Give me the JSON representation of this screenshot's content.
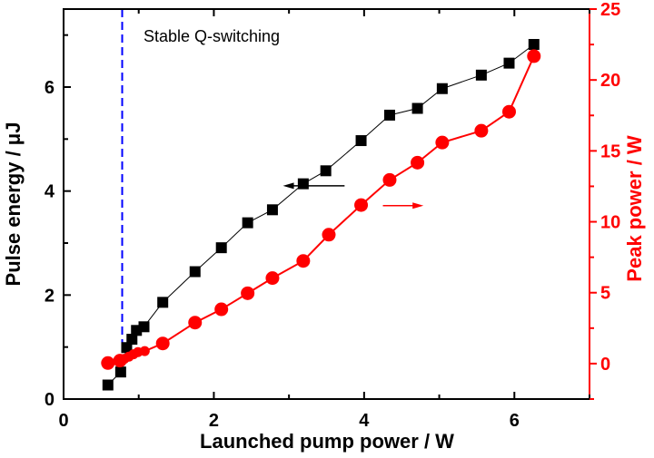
{
  "chart_data": {
    "type": "line",
    "xlabel": "Launched pump power / W",
    "ylabel_left": "Pulse energy / μJ",
    "ylabel_right": "Peak power / W",
    "xlim": [
      0,
      7
    ],
    "ylim_left": [
      0,
      7.5
    ],
    "ylim_right": [
      -2.5,
      25
    ],
    "xticks": [
      "0",
      "2",
      "4",
      "6"
    ],
    "yticks_left": [
      "0",
      "2",
      "4",
      "6"
    ],
    "yticks_right": [
      "0",
      "5",
      "10",
      "15",
      "20",
      "25"
    ],
    "grid": false,
    "colors": {
      "left_axis": "#000000",
      "right_axis": "#ff0000",
      "threshold_line": "#0000ff"
    },
    "annotation": "Stable Q-switching",
    "threshold_x": 0.78,
    "series": [
      {
        "axis": "left",
        "marker": "square",
        "color": "#000000",
        "x": [
          0.59,
          0.76,
          0.84,
          0.91,
          0.97,
          1.07,
          1.32,
          1.75,
          2.1,
          2.45,
          2.78,
          3.19,
          3.49,
          3.96,
          4.34,
          4.71,
          5.04,
          5.56,
          5.93,
          6.26
        ],
        "y": [
          0.27,
          0.52,
          0.99,
          1.15,
          1.32,
          1.39,
          1.86,
          2.45,
          2.91,
          3.39,
          3.64,
          4.14,
          4.39,
          4.97,
          5.46,
          5.59,
          5.97,
          6.23,
          6.46,
          6.82
        ]
      },
      {
        "axis": "right",
        "marker": "circle",
        "color": "#ff0000",
        "x": [
          0.59,
          0.75,
          0.81,
          0.87,
          0.93,
          0.99,
          1.08,
          1.32,
          1.75,
          2.1,
          2.45,
          2.78,
          3.19,
          3.53,
          3.96,
          4.34,
          4.71,
          5.04,
          5.56,
          5.93,
          6.26
        ],
        "y": [
          0.04,
          0.21,
          0.34,
          0.49,
          0.66,
          0.81,
          0.88,
          1.42,
          2.89,
          3.83,
          4.96,
          6.03,
          7.24,
          9.09,
          11.18,
          12.95,
          14.17,
          15.59,
          16.42,
          17.76,
          21.68
        ]
      }
    ],
    "arrows": [
      {
        "axis": "left",
        "direction": "left",
        "from_x": 3.74,
        "to_x": 2.92,
        "y": 4.1,
        "color": "#000000"
      },
      {
        "axis": "right",
        "direction": "right",
        "from_x": 4.25,
        "to_x": 4.79,
        "y": 11.14,
        "color": "#ff0000"
      }
    ]
  }
}
